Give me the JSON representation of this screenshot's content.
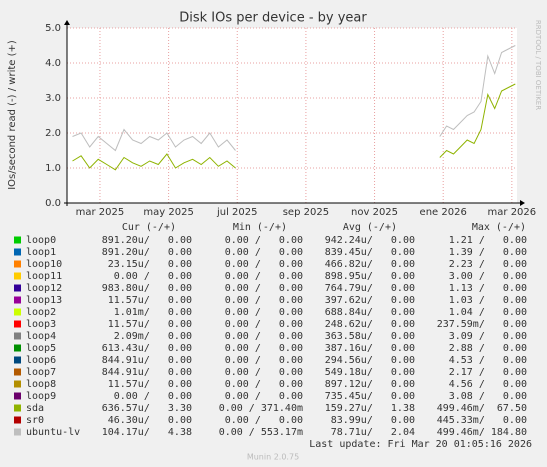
{
  "chart_data": {
    "type": "line",
    "title": "Disk IOs per device - by year",
    "y_label": "IOs/second read (-) / write (+)",
    "watermark": "RRDTOOL / TOBI OETIKER",
    "footer": "Munin 2.0.75",
    "last_update": "Last update: Fri Mar 20 01:05:16 2026",
    "headers": [
      "Cur (-/+)",
      "Min (-/+)",
      "Avg (-/+)",
      "Max (-/+)"
    ],
    "grid": true,
    "xlim": [
      2.04,
      15.15
    ],
    "ylim": [
      0,
      5
    ],
    "xticks": [
      {
        "value": 3,
        "label": "mar 2025"
      },
      {
        "value": 5,
        "label": "may 2025"
      },
      {
        "value": 7,
        "label": "jul 2025"
      },
      {
        "value": 9,
        "label": "sep 2025"
      },
      {
        "value": 11,
        "label": "nov 2025"
      },
      {
        "value": 13,
        "label": "ene 2026"
      },
      {
        "value": 15,
        "label": "mar 2026"
      }
    ],
    "yticks": [
      {
        "value": 0,
        "label": "0.0"
      },
      {
        "value": 1,
        "label": "1.0"
      },
      {
        "value": 2,
        "label": "2.0"
      },
      {
        "value": 3,
        "label": "3.0"
      },
      {
        "value": 4,
        "label": "4.0"
      },
      {
        "value": 5,
        "label": "5.0"
      }
    ],
    "x": [
      2.2,
      2.45,
      2.7,
      2.95,
      3.2,
      3.45,
      3.7,
      3.95,
      4.2,
      4.45,
      4.7,
      4.95,
      5.2,
      5.45,
      5.7,
      5.95,
      6.2,
      6.45,
      6.7,
      6.95,
      10,
      12.9,
      13.1,
      13.3,
      13.5,
      13.7,
      13.9,
      14.1,
      14.3,
      14.5,
      14.7,
      14.9,
      15.1
    ],
    "series": [
      {
        "name": "loop0",
        "color": "#00cc00",
        "stats": [
          "891.20u/   0.00",
          "0.00 /   0.00",
          "942.24u/   0.00",
          "1.21 /   0.00"
        ],
        "values": [
          0,
          0,
          0,
          0,
          0,
          0,
          0,
          0,
          0,
          0,
          0,
          0,
          0,
          0,
          0,
          0,
          0,
          0,
          0,
          0,
          null,
          0,
          0,
          0,
          0,
          0,
          0,
          0,
          0,
          0,
          0,
          0,
          0
        ]
      },
      {
        "name": "loop1",
        "color": "#0066b3",
        "stats": [
          "891.20u/   0.00",
          "0.00 /   0.00",
          "839.45u/   0.00",
          "1.39 /   0.00"
        ],
        "values": [
          0,
          0,
          0,
          0,
          0,
          0,
          0,
          0,
          0,
          0,
          0,
          0,
          0,
          0,
          0,
          0,
          0,
          0,
          0,
          0,
          null,
          0,
          0,
          0,
          0,
          0,
          0,
          0,
          0,
          0,
          0,
          0,
          0
        ]
      },
      {
        "name": "loop10",
        "color": "#ff8000",
        "stats": [
          "23.15u/   0.00",
          "0.00 /   0.00",
          "466.82u/   0.00",
          "2.23 /   0.00"
        ],
        "values": [
          0,
          0,
          0,
          0,
          0,
          0,
          0,
          0,
          0,
          0,
          0,
          0,
          0,
          0,
          0,
          0,
          0,
          0,
          0,
          0,
          null,
          0,
          0,
          0,
          0,
          0,
          0,
          0,
          0,
          0,
          0,
          0,
          0
        ]
      },
      {
        "name": "loop11",
        "color": "#ffcc00",
        "stats": [
          "0.00 /   0.00",
          "0.00 /   0.00",
          "898.95u/   0.00",
          "3.00 /   0.00"
        ],
        "values": [
          0,
          0,
          0,
          0,
          0,
          0,
          0,
          0,
          0,
          0,
          0,
          0,
          0,
          0,
          0,
          0,
          0,
          0,
          0,
          0,
          null,
          0,
          0,
          0,
          0,
          0,
          0,
          0,
          0,
          0,
          0,
          0,
          0
        ]
      },
      {
        "name": "loop12",
        "color": "#330099",
        "stats": [
          "983.80u/   0.00",
          "0.00 /   0.00",
          "764.79u/   0.00",
          "1.13 /   0.00"
        ],
        "values": [
          0,
          0,
          0,
          0,
          0,
          0,
          0,
          0,
          0,
          0,
          0,
          0,
          0,
          0,
          0,
          0,
          0,
          0,
          0,
          0,
          null,
          0,
          0,
          0,
          0,
          0,
          0,
          0,
          0,
          0,
          0,
          0,
          0
        ]
      },
      {
        "name": "loop13",
        "color": "#990099",
        "stats": [
          "11.57u/   0.00",
          "0.00 /   0.00",
          "397.62u/   0.00",
          "1.03 /   0.00"
        ],
        "values": [
          0,
          0,
          0,
          0,
          0,
          0,
          0,
          0,
          0,
          0,
          0,
          0,
          0,
          0,
          0,
          0,
          0,
          0,
          0,
          0,
          null,
          0,
          0,
          0,
          0,
          0,
          0,
          0,
          0,
          0,
          0,
          0,
          0
        ]
      },
      {
        "name": "loop2",
        "color": "#ccff00",
        "stats": [
          "1.01m/   0.00",
          "0.00 /   0.00",
          "688.84u/   0.00",
          "1.04 /   0.00"
        ],
        "values": [
          0,
          0,
          0,
          0,
          0,
          0,
          0,
          0,
          0,
          0,
          0,
          0,
          0,
          0,
          0,
          0,
          0,
          0,
          0,
          0,
          null,
          0,
          0,
          0,
          0,
          0,
          0,
          0,
          0,
          0,
          0,
          0,
          0
        ]
      },
      {
        "name": "loop3",
        "color": "#ff0000",
        "stats": [
          "11.57u/   0.00",
          "0.00 /   0.00",
          "248.62u/   0.00",
          "237.59m/   0.00"
        ],
        "values": [
          0,
          0,
          0,
          0,
          0,
          0,
          0,
          0,
          0,
          0,
          0,
          0,
          0,
          0,
          0,
          0,
          0,
          0,
          0,
          0,
          null,
          0,
          0,
          0,
          0,
          0,
          0,
          0,
          0,
          0,
          0,
          0,
          0
        ]
      },
      {
        "name": "loop4",
        "color": "#808080",
        "stats": [
          "2.09m/   0.00",
          "0.00 /   0.00",
          "363.58u/   0.00",
          "3.09 /   0.00"
        ],
        "values": [
          0,
          0,
          0,
          0,
          0,
          0,
          0,
          0,
          0,
          0,
          0,
          0,
          0,
          0,
          0,
          0,
          0,
          0,
          0,
          0,
          null,
          0,
          0,
          0,
          0,
          0,
          0,
          0,
          0,
          0,
          0,
          0,
          0
        ]
      },
      {
        "name": "loop5",
        "color": "#008f00",
        "stats": [
          "613.43u/   0.00",
          "0.00 /   0.00",
          "387.16u/   0.00",
          "2.88 /   0.00"
        ],
        "values": [
          0,
          0,
          0,
          0,
          0,
          0,
          0,
          0,
          0,
          0,
          0,
          0,
          0,
          0,
          0,
          0,
          0,
          0,
          0,
          0,
          null,
          0,
          0,
          0,
          0,
          0,
          0,
          0,
          0,
          0,
          0,
          0,
          0
        ]
      },
      {
        "name": "loop6",
        "color": "#00487d",
        "stats": [
          "844.91u/   0.00",
          "0.00 /   0.00",
          "294.56u/   0.00",
          "4.53 /   0.00"
        ],
        "values": [
          0,
          0,
          0,
          0,
          0,
          0,
          0,
          0,
          0,
          0,
          0,
          0,
          0,
          0,
          0,
          0,
          0,
          0,
          0,
          0,
          null,
          0,
          0,
          0,
          0,
          0,
          0,
          0,
          0,
          0,
          0,
          0,
          0
        ]
      },
      {
        "name": "loop7",
        "color": "#b35a00",
        "stats": [
          "844.91u/   0.00",
          "0.00 /   0.00",
          "549.18u/   0.00",
          "2.17 /   0.00"
        ],
        "values": [
          0,
          0,
          0,
          0,
          0,
          0,
          0,
          0,
          0,
          0,
          0,
          0,
          0,
          0,
          0,
          0,
          0,
          0,
          0,
          0,
          null,
          0,
          0,
          0,
          0,
          0,
          0,
          0,
          0,
          0,
          0,
          0,
          0
        ]
      },
      {
        "name": "loop8",
        "color": "#b38f00",
        "stats": [
          "11.57u/   0.00",
          "0.00 /   0.00",
          "897.12u/   0.00",
          "4.56 /   0.00"
        ],
        "values": [
          0,
          0,
          0,
          0,
          0,
          0,
          0,
          0,
          0,
          0,
          0,
          0,
          0,
          0,
          0,
          0,
          0,
          0,
          0,
          0,
          null,
          0,
          0,
          0,
          0,
          0,
          0,
          0,
          0,
          0,
          0,
          0,
          0
        ]
      },
      {
        "name": "loop9",
        "color": "#6b006b",
        "stats": [
          "0.00 /   0.00",
          "0.00 /   0.00",
          "735.45u/   0.00",
          "3.08 /   0.00"
        ],
        "values": [
          0,
          0,
          0,
          0,
          0,
          0,
          0,
          0,
          0,
          0,
          0,
          0,
          0,
          0,
          0,
          0,
          0,
          0,
          0,
          0,
          null,
          0,
          0,
          0,
          0,
          0,
          0,
          0,
          0,
          0,
          0,
          0,
          0
        ]
      },
      {
        "name": "sda",
        "color": "#8fb300",
        "stats": [
          "636.57u/   3.30",
          "0.00 / 371.40m",
          "159.27u/   1.38",
          "499.46m/  67.50"
        ],
        "values": [
          1.2,
          1.35,
          1.0,
          1.25,
          1.1,
          0.95,
          1.3,
          1.15,
          1.05,
          1.2,
          1.1,
          1.4,
          1.0,
          1.15,
          1.25,
          1.1,
          1.3,
          1.05,
          1.2,
          1.0,
          null,
          1.3,
          1.5,
          1.4,
          1.6,
          1.8,
          1.7,
          2.1,
          3.1,
          2.7,
          3.2,
          3.3,
          3.4
        ]
      },
      {
        "name": "sr0",
        "color": "#b30000",
        "stats": [
          "46.30u/   0.00",
          "0.00 /   0.00",
          "83.99u/   0.00",
          "445.33m/   0.00"
        ],
        "values": [
          0,
          0,
          0,
          0,
          0,
          0,
          0,
          0,
          0,
          0,
          0,
          0,
          0,
          0,
          0,
          0,
          0,
          0,
          0,
          0,
          null,
          0,
          0,
          0,
          0,
          0,
          0,
          0,
          0,
          0,
          0,
          0,
          0
        ]
      },
      {
        "name": "ubuntu-lv",
        "color": "#bebebe",
        "stats": [
          "104.17u/   4.38",
          "0.00 / 553.17m",
          "78.71u/   2.04",
          "499.46m/ 184.80"
        ],
        "values": [
          1.9,
          2.0,
          1.6,
          1.9,
          1.7,
          1.5,
          2.1,
          1.8,
          1.7,
          1.9,
          1.8,
          2.0,
          1.6,
          1.8,
          1.9,
          1.7,
          2.0,
          1.6,
          1.8,
          1.5,
          null,
          1.9,
          2.2,
          2.1,
          2.3,
          2.5,
          2.6,
          2.9,
          4.2,
          3.7,
          4.3,
          4.4,
          4.5
        ]
      }
    ]
  }
}
